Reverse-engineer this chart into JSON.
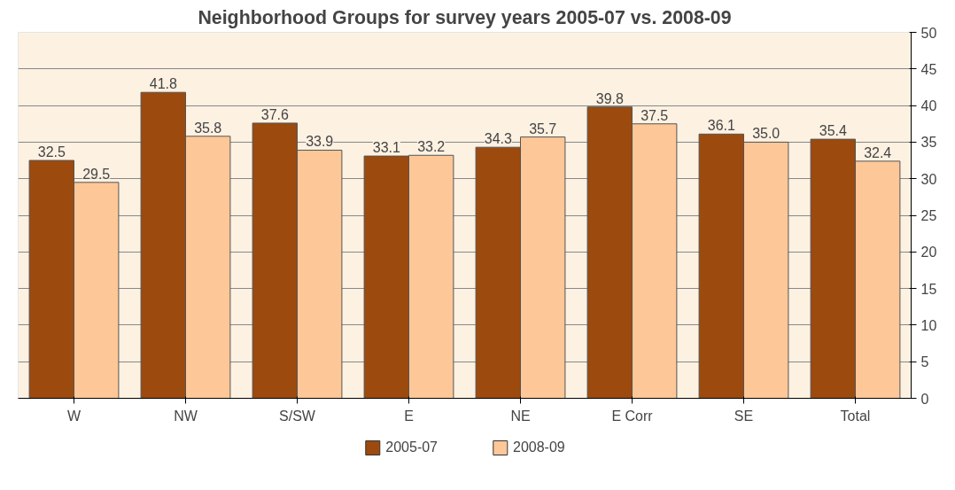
{
  "chart_data": {
    "type": "bar",
    "title": "Neighborhood Groups for survey years 2005-07 vs. 2008-09",
    "categories": [
      "W",
      "NW",
      "S/SW",
      "E",
      "NE",
      "E Corr",
      "SE",
      "Total"
    ],
    "series": [
      {
        "name": "2005-07",
        "color": "#9c4a0e",
        "values": [
          32.5,
          41.8,
          37.6,
          33.1,
          34.3,
          39.8,
          36.1,
          35.4
        ],
        "value_labels": [
          "32.5",
          "41.8",
          "37.6",
          "33.1",
          "34.3",
          "39.8",
          "36.1",
          "35.4"
        ]
      },
      {
        "name": "2008-09",
        "color": "#fdc797",
        "values": [
          29.5,
          35.8,
          33.9,
          33.2,
          35.7,
          37.5,
          35.0,
          32.4
        ],
        "value_labels": [
          "29.5",
          "35.8",
          "33.9",
          "33.2",
          "35.7",
          "37.5",
          "35.0",
          "32.4"
        ]
      }
    ],
    "ylim": [
      0,
      50
    ],
    "yticks": [
      0,
      5,
      10,
      15,
      20,
      25,
      30,
      35,
      40,
      45,
      50
    ],
    "grid": "y",
    "legend": "bottom"
  }
}
